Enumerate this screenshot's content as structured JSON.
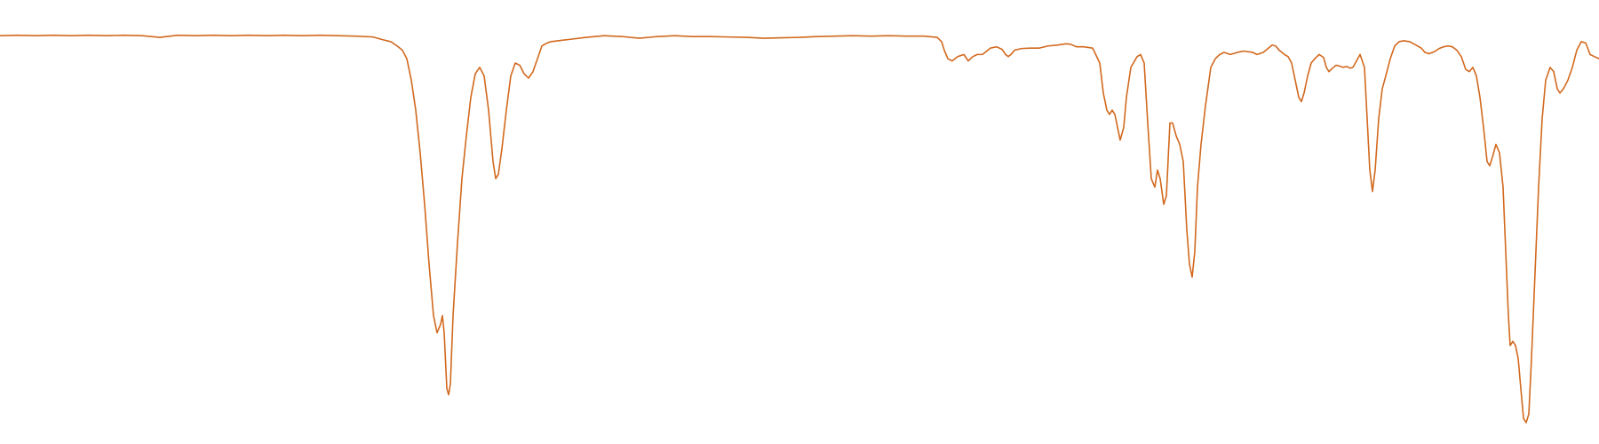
{
  "chart_data": {
    "type": "line",
    "title": "",
    "xlabel": "",
    "ylabel": "",
    "xlim": [
      0,
      1800
    ],
    "ylim": [
      0,
      1
    ],
    "grid": false,
    "axes_visible": false,
    "legend": "none",
    "series": [
      {
        "color": "#d2691e",
        "points": [
          [
            0,
            0.954
          ],
          [
            20,
            0.955
          ],
          [
            40,
            0.954
          ],
          [
            60,
            0.955
          ],
          [
            80,
            0.954
          ],
          [
            100,
            0.955
          ],
          [
            120,
            0.954
          ],
          [
            140,
            0.955
          ],
          [
            160,
            0.954
          ],
          [
            180,
            0.95
          ],
          [
            200,
            0.955
          ],
          [
            220,
            0.954
          ],
          [
            240,
            0.955
          ],
          [
            260,
            0.954
          ],
          [
            280,
            0.955
          ],
          [
            300,
            0.954
          ],
          [
            320,
            0.955
          ],
          [
            340,
            0.954
          ],
          [
            360,
            0.955
          ],
          [
            380,
            0.954
          ],
          [
            400,
            0.953
          ],
          [
            420,
            0.951
          ],
          [
            430,
            0.945
          ],
          [
            440,
            0.94
          ],
          [
            447,
            0.93
          ],
          [
            453,
            0.92
          ],
          [
            458,
            0.9
          ],
          [
            463,
            0.85
          ],
          [
            468,
            0.78
          ],
          [
            473,
            0.68
          ],
          [
            478,
            0.56
          ],
          [
            483,
            0.42
          ],
          [
            488,
            0.3
          ],
          [
            492,
            0.26
          ],
          [
            496,
            0.28
          ],
          [
            498,
            0.3
          ],
          [
            500,
            0.26
          ],
          [
            503,
            0.13
          ],
          [
            505,
            0.115
          ],
          [
            507,
            0.14
          ],
          [
            510,
            0.3
          ],
          [
            515,
            0.47
          ],
          [
            520,
            0.62
          ],
          [
            525,
            0.72
          ],
          [
            530,
            0.81
          ],
          [
            535,
            0.865
          ],
          [
            540,
            0.88
          ],
          [
            545,
            0.86
          ],
          [
            550,
            0.78
          ],
          [
            555,
            0.66
          ],
          [
            558,
            0.62
          ],
          [
            561,
            0.63
          ],
          [
            565,
            0.69
          ],
          [
            570,
            0.78
          ],
          [
            575,
            0.86
          ],
          [
            580,
            0.89
          ],
          [
            585,
            0.885
          ],
          [
            590,
            0.865
          ],
          [
            595,
            0.855
          ],
          [
            600,
            0.87
          ],
          [
            605,
            0.9
          ],
          [
            610,
            0.93
          ],
          [
            615,
            0.936
          ],
          [
            620,
            0.94
          ],
          [
            640,
            0.945
          ],
          [
            660,
            0.95
          ],
          [
            680,
            0.954
          ],
          [
            700,
            0.952
          ],
          [
            720,
            0.948
          ],
          [
            740,
            0.952
          ],
          [
            760,
            0.954
          ],
          [
            780,
            0.952
          ],
          [
            800,
            0.952
          ],
          [
            820,
            0.951
          ],
          [
            840,
            0.95
          ],
          [
            860,
            0.948
          ],
          [
            880,
            0.949
          ],
          [
            900,
            0.95
          ],
          [
            920,
            0.952
          ],
          [
            940,
            0.953
          ],
          [
            960,
            0.954
          ],
          [
            980,
            0.953
          ],
          [
            1000,
            0.954
          ],
          [
            1020,
            0.953
          ],
          [
            1040,
            0.953
          ],
          [
            1055,
            0.95
          ],
          [
            1060,
            0.94
          ],
          [
            1063,
            0.92
          ],
          [
            1067,
            0.9
          ],
          [
            1072,
            0.895
          ],
          [
            1078,
            0.905
          ],
          [
            1085,
            0.91
          ],
          [
            1090,
            0.895
          ],
          [
            1095,
            0.905
          ],
          [
            1100,
            0.91
          ],
          [
            1106,
            0.91
          ],
          [
            1115,
            0.925
          ],
          [
            1122,
            0.928
          ],
          [
            1128,
            0.922
          ],
          [
            1132,
            0.91
          ],
          [
            1135,
            0.905
          ],
          [
            1138,
            0.91
          ],
          [
            1142,
            0.92
          ],
          [
            1150,
            0.924
          ],
          [
            1160,
            0.925
          ],
          [
            1170,
            0.925
          ],
          [
            1180,
            0.93
          ],
          [
            1190,
            0.932
          ],
          [
            1200,
            0.935
          ],
          [
            1205,
            0.934
          ],
          [
            1212,
            0.928
          ],
          [
            1220,
            0.928
          ],
          [
            1230,
            0.925
          ],
          [
            1238,
            0.89
          ],
          [
            1242,
            0.82
          ],
          [
            1246,
            0.78
          ],
          [
            1249,
            0.77
          ],
          [
            1252,
            0.78
          ],
          [
            1255,
            0.77
          ],
          [
            1258,
            0.74
          ],
          [
            1261,
            0.71
          ],
          [
            1265,
            0.74
          ],
          [
            1268,
            0.81
          ],
          [
            1273,
            0.88
          ],
          [
            1280,
            0.905
          ],
          [
            1284,
            0.91
          ],
          [
            1288,
            0.89
          ],
          [
            1292,
            0.75
          ],
          [
            1296,
            0.62
          ],
          [
            1300,
            0.6
          ],
          [
            1303,
            0.64
          ],
          [
            1306,
            0.62
          ],
          [
            1310,
            0.56
          ],
          [
            1313,
            0.58
          ],
          [
            1317,
            0.75
          ],
          [
            1320,
            0.75
          ],
          [
            1324,
            0.72
          ],
          [
            1328,
            0.7
          ],
          [
            1332,
            0.66
          ],
          [
            1336,
            0.5
          ],
          [
            1339,
            0.42
          ],
          [
            1342,
            0.39
          ],
          [
            1345,
            0.45
          ],
          [
            1348,
            0.6
          ],
          [
            1352,
            0.7
          ],
          [
            1357,
            0.79
          ],
          [
            1363,
            0.88
          ],
          [
            1368,
            0.9
          ],
          [
            1373,
            0.91
          ],
          [
            1378,
            0.915
          ],
          [
            1385,
            0.91
          ],
          [
            1393,
            0.915
          ],
          [
            1400,
            0.918
          ],
          [
            1410,
            0.915
          ],
          [
            1415,
            0.91
          ],
          [
            1422,
            0.915
          ],
          [
            1428,
            0.925
          ],
          [
            1432,
            0.932
          ],
          [
            1436,
            0.93
          ],
          [
            1440,
            0.92
          ],
          [
            1446,
            0.91
          ],
          [
            1450,
            0.905
          ],
          [
            1454,
            0.89
          ],
          [
            1458,
            0.85
          ],
          [
            1462,
            0.81
          ],
          [
            1465,
            0.8
          ],
          [
            1468,
            0.82
          ],
          [
            1472,
            0.86
          ],
          [
            1476,
            0.89
          ],
          [
            1480,
            0.9
          ],
          [
            1485,
            0.91
          ],
          [
            1490,
            0.903
          ],
          [
            1493,
            0.88
          ],
          [
            1496,
            0.87
          ],
          [
            1500,
            0.878
          ],
          [
            1504,
            0.885
          ],
          [
            1508,
            0.883
          ],
          [
            1512,
            0.88
          ],
          [
            1516,
            0.882
          ],
          [
            1520,
            0.878
          ],
          [
            1523,
            0.88
          ],
          [
            1527,
            0.895
          ],
          [
            1531,
            0.91
          ],
          [
            1536,
            0.88
          ],
          [
            1539,
            0.76
          ],
          [
            1542,
            0.64
          ],
          [
            1545,
            0.59
          ],
          [
            1548,
            0.64
          ],
          [
            1552,
            0.76
          ],
          [
            1556,
            0.83
          ],
          [
            1560,
            0.86
          ],
          [
            1565,
            0.9
          ],
          [
            1570,
            0.93
          ],
          [
            1575,
            0.94
          ],
          [
            1580,
            0.942
          ],
          [
            1587,
            0.94
          ],
          [
            1594,
            0.932
          ],
          [
            1600,
            0.925
          ],
          [
            1604,
            0.915
          ],
          [
            1609,
            0.912
          ],
          [
            1615,
            0.917
          ],
          [
            1620,
            0.924
          ],
          [
            1625,
            0.928
          ],
          [
            1630,
            0.93
          ],
          [
            1635,
            0.928
          ],
          [
            1640,
            0.92
          ],
          [
            1645,
            0.905
          ],
          [
            1650,
            0.875
          ],
          [
            1654,
            0.87
          ],
          [
            1658,
            0.88
          ],
          [
            1662,
            0.86
          ],
          [
            1666,
            0.81
          ],
          [
            1670,
            0.74
          ],
          [
            1674,
            0.66
          ],
          [
            1677,
            0.65
          ],
          [
            1680,
            0.67
          ],
          [
            1684,
            0.7
          ],
          [
            1688,
            0.68
          ],
          [
            1692,
            0.6
          ],
          [
            1695,
            0.45
          ],
          [
            1698,
            0.3
          ],
          [
            1700,
            0.23
          ],
          [
            1703,
            0.24
          ],
          [
            1706,
            0.23
          ],
          [
            1709,
            0.2
          ],
          [
            1712,
            0.13
          ],
          [
            1715,
            0.06
          ],
          [
            1718,
            0.05
          ],
          [
            1721,
            0.07
          ],
          [
            1724,
            0.2
          ],
          [
            1728,
            0.4
          ],
          [
            1732,
            0.6
          ],
          [
            1736,
            0.76
          ],
          [
            1740,
            0.85
          ],
          [
            1745,
            0.88
          ],
          [
            1749,
            0.87
          ],
          [
            1753,
            0.83
          ],
          [
            1756,
            0.82
          ],
          [
            1760,
            0.83
          ],
          [
            1765,
            0.85
          ],
          [
            1770,
            0.88
          ],
          [
            1775,
            0.92
          ],
          [
            1780,
            0.94
          ],
          [
            1785,
            0.937
          ],
          [
            1790,
            0.91
          ],
          [
            1795,
            0.905
          ],
          [
            1800,
            0.9
          ]
        ]
      }
    ]
  }
}
